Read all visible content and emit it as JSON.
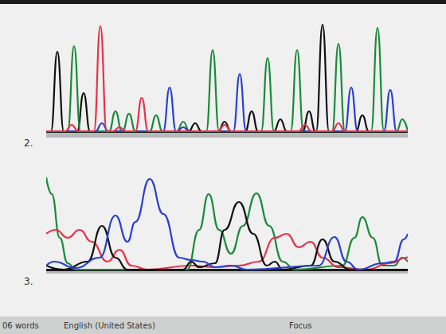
{
  "chart_data": [
    {
      "type": "line",
      "title": "2.",
      "xlim": [
        0,
        454
      ],
      "ylim": [
        0,
        135
      ],
      "tick_labels": false,
      "series": [
        {
          "color": "#111111",
          "x": [
            0,
            6,
            14,
            22,
            39,
            47,
            55,
            179,
            187,
            195,
            216,
            224,
            232,
            250,
            258,
            266,
            286,
            294,
            302,
            322,
            330,
            338,
            339,
            347,
            355,
            389,
            397,
            405,
            454
          ],
          "values": [
            0,
            0,
            100,
            0,
            0,
            48,
            0,
            0,
            10,
            0,
            0,
            12,
            0,
            0,
            25,
            0,
            0,
            15,
            0,
            0,
            25,
            0,
            0,
            134,
            0,
            0,
            20,
            0,
            0
          ]
        },
        {
          "color": "#1a8a3a",
          "x": [
            0,
            27,
            35,
            43,
            79,
            87,
            95,
            96,
            104,
            112,
            130,
            138,
            146,
            164,
            172,
            180,
            201,
            209,
            217,
            270,
            278,
            286,
            307,
            315,
            323,
            359,
            367,
            375,
            408,
            416,
            424,
            440,
            447,
            454
          ],
          "values": [
            0,
            0,
            107,
            0,
            0,
            25,
            0,
            0,
            22,
            0,
            0,
            20,
            0,
            0,
            12,
            0,
            0,
            102,
            0,
            0,
            92,
            0,
            0,
            102,
            0,
            0,
            110,
            0,
            0,
            130,
            0,
            0,
            15,
            0
          ]
        },
        {
          "color": "#2a3fd0",
          "x": [
            0,
            62,
            70,
            78,
            147,
            155,
            163,
            164,
            172,
            180,
            235,
            243,
            251,
            375,
            383,
            391,
            424,
            432,
            440,
            454
          ],
          "values": [
            0,
            0,
            10,
            0,
            0,
            55,
            0,
            0,
            5,
            0,
            0,
            72,
            0,
            0,
            55,
            0,
            0,
            52,
            0,
            0
          ]
        },
        {
          "color": "#e8304a",
          "x": [
            0,
            24,
            32,
            40,
            60,
            68,
            76,
            84,
            92,
            100,
            112,
            120,
            128,
            216,
            224,
            232,
            317,
            325,
            333,
            359,
            367,
            375,
            454
          ],
          "values": [
            0,
            0,
            8,
            0,
            0,
            132,
            0,
            0,
            5,
            0,
            0,
            42,
            0,
            0,
            8,
            0,
            0,
            8,
            0,
            0,
            10,
            0,
            0
          ]
        }
      ]
    },
    {
      "type": "line",
      "title": "3.",
      "xlim": [
        0,
        454
      ],
      "ylim": [
        0,
        125
      ],
      "tick_labels": false,
      "series": [
        {
          "color": "#1a8a3a",
          "x": [
            0,
            7,
            17,
            27,
            37,
            177,
            192,
            204,
            217,
            232,
            247,
            264,
            280,
            297,
            312,
            372,
            387,
            397,
            410,
            422,
            437,
            447,
            454
          ],
          "values": [
            116,
            95,
            40,
            8,
            0,
            0,
            50,
            95,
            50,
            20,
            55,
            96,
            55,
            10,
            0,
            5,
            40,
            66,
            40,
            5,
            5,
            15,
            10
          ]
        },
        {
          "color": "#e8304a",
          "x": [
            0,
            12,
            27,
            42,
            57,
            77,
            92,
            107,
            127,
            182,
            212,
            242,
            267,
            287,
            302,
            317,
            332,
            347,
            367,
            402,
            432,
            452,
            454
          ],
          "values": [
            45,
            50,
            40,
            50,
            35,
            10,
            25,
            5,
            0,
            5,
            3,
            5,
            10,
            40,
            45,
            28,
            35,
            15,
            3,
            0,
            8,
            15,
            16
          ]
        },
        {
          "color": "#111111",
          "x": [
            0,
            22,
            52,
            70,
            87,
            102,
            172,
            182,
            192,
            212,
            224,
            242,
            260,
            277,
            287,
            297,
            332,
            347,
            362,
            382,
            454
          ],
          "values": [
            5,
            0,
            10,
            55,
            15,
            0,
            0,
            10,
            3,
            8,
            50,
            85,
            45,
            5,
            10,
            0,
            5,
            38,
            10,
            0,
            0
          ]
        },
        {
          "color": "#2a3fd0",
          "x": [
            0,
            10,
            37,
            67,
            87,
            102,
            112,
            130,
            147,
            167,
            182,
            197,
            212,
            232,
            252,
            342,
            362,
            377,
            392,
            422,
            437,
            449,
            454
          ],
          "values": [
            5,
            10,
            2,
            15,
            68,
            35,
            60,
            114,
            70,
            15,
            12,
            10,
            3,
            5,
            0,
            5,
            41,
            10,
            0,
            8,
            10,
            38,
            45
          ]
        }
      ]
    }
  ],
  "status_bar": {
    "word_count": "06 words",
    "language": "English (United States)",
    "focus": "Focus"
  }
}
